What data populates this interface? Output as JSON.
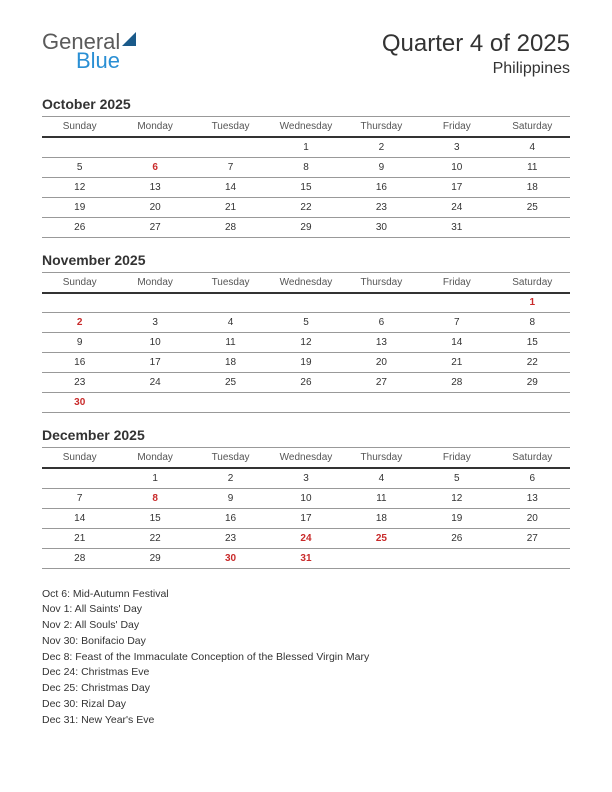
{
  "logo": {
    "general": "General",
    "blue": "Blue"
  },
  "title": "Quarter 4 of 2025",
  "subtitle": "Philippines",
  "weekdays": [
    "Sunday",
    "Monday",
    "Tuesday",
    "Wednesday",
    "Thursday",
    "Friday",
    "Saturday"
  ],
  "months": [
    {
      "name": "October 2025",
      "weeks": [
        [
          null,
          null,
          null,
          "1",
          "2",
          "3",
          "4"
        ],
        [
          "5",
          "6",
          "7",
          "8",
          "9",
          "10",
          "11"
        ],
        [
          "12",
          "13",
          "14",
          "15",
          "16",
          "17",
          "18"
        ],
        [
          "19",
          "20",
          "21",
          "22",
          "23",
          "24",
          "25"
        ],
        [
          "26",
          "27",
          "28",
          "29",
          "30",
          "31",
          null
        ]
      ],
      "holidays": [
        "6"
      ]
    },
    {
      "name": "November 2025",
      "weeks": [
        [
          null,
          null,
          null,
          null,
          null,
          null,
          "1"
        ],
        [
          "2",
          "3",
          "4",
          "5",
          "6",
          "7",
          "8"
        ],
        [
          "9",
          "10",
          "11",
          "12",
          "13",
          "14",
          "15"
        ],
        [
          "16",
          "17",
          "18",
          "19",
          "20",
          "21",
          "22"
        ],
        [
          "23",
          "24",
          "25",
          "26",
          "27",
          "28",
          "29"
        ],
        [
          "30",
          null,
          null,
          null,
          null,
          null,
          null
        ]
      ],
      "holidays": [
        "1",
        "2",
        "30"
      ]
    },
    {
      "name": "December 2025",
      "weeks": [
        [
          null,
          "1",
          "2",
          "3",
          "4",
          "5",
          "6"
        ],
        [
          "7",
          "8",
          "9",
          "10",
          "11",
          "12",
          "13"
        ],
        [
          "14",
          "15",
          "16",
          "17",
          "18",
          "19",
          "20"
        ],
        [
          "21",
          "22",
          "23",
          "24",
          "25",
          "26",
          "27"
        ],
        [
          "28",
          "29",
          "30",
          "31",
          null,
          null,
          null
        ]
      ],
      "holidays": [
        "8",
        "24",
        "25",
        "30",
        "31"
      ]
    }
  ],
  "holiday_list": [
    "Oct 6: Mid-Autumn Festival",
    "Nov 1: All Saints' Day",
    "Nov 2: All Souls' Day",
    "Nov 30: Bonifacio Day",
    "Dec 8: Feast of the Immaculate Conception of the Blessed Virgin Mary",
    "Dec 24: Christmas Eve",
    "Dec 25: Christmas Day",
    "Dec 30: Rizal Day",
    "Dec 31: New Year's Eve"
  ],
  "colors": {
    "holiday_text": "#c92a2a",
    "header_rule": "#333333",
    "row_rule": "#999999",
    "logo_blue": "#2a8fd4",
    "logo_gray": "#5a5a5a"
  }
}
